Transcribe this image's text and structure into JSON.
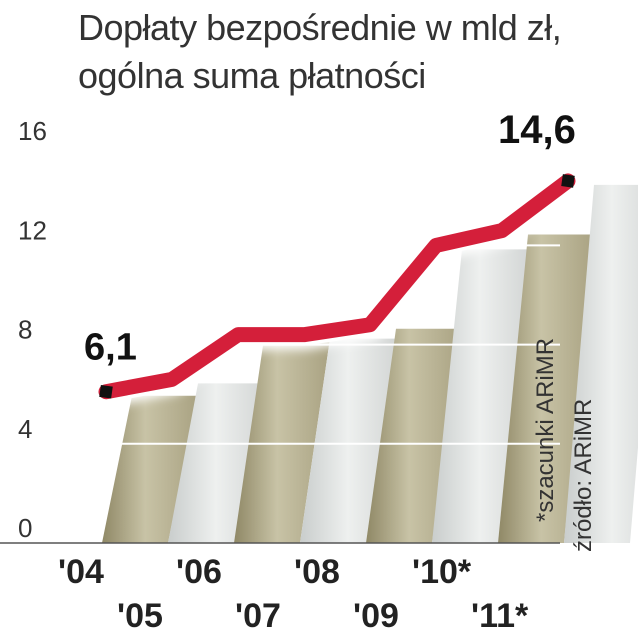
{
  "title": {
    "line1": "Dopłaty bezpośrednie w  mld zł,",
    "line2": "ogólna suma płatności"
  },
  "notes": {
    "estimate": "*szacunki ARiMR",
    "source": "źródło: ARiMR"
  },
  "colors": {
    "line": "#d41f3a",
    "bar_olive": "#b9b393",
    "bar_light": "#dfe2e1",
    "marker": "#111111"
  },
  "chart_data": {
    "type": "line",
    "x": [
      "'04",
      "'05",
      "'06",
      "'07",
      "'08",
      "'09",
      "'10*",
      "'11*"
    ],
    "values": [
      6.1,
      6.6,
      8.4,
      8.4,
      8.8,
      12.0,
      12.6,
      14.6
    ],
    "y_ticks": [
      0,
      4,
      8,
      12,
      16
    ],
    "ylim": [
      0,
      16
    ],
    "data_labels": [
      {
        "index": 0,
        "text": "6,1"
      },
      {
        "index": 7,
        "text": "14,6"
      }
    ],
    "grid": true
  }
}
